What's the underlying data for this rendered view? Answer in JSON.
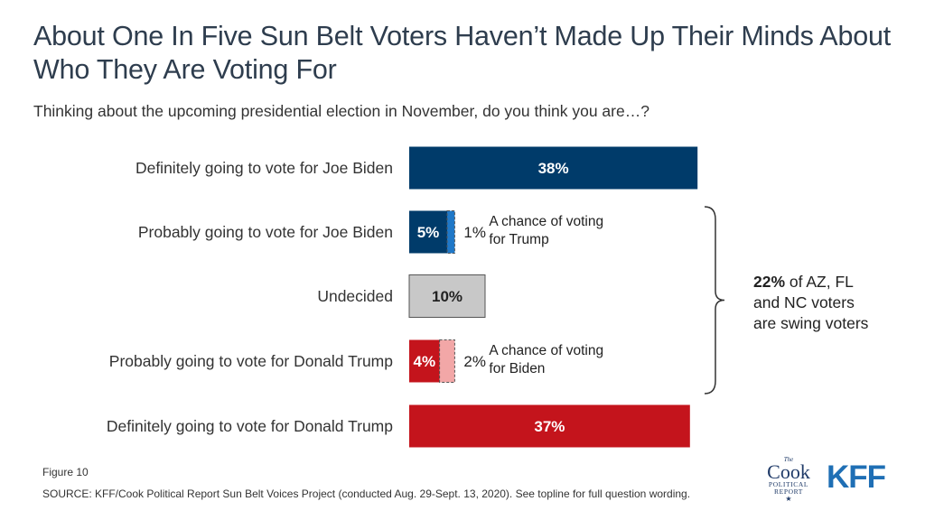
{
  "title": "About One In Five Sun Belt Voters Haven’t Made Up Their Minds About Who They Are Voting For",
  "subtitle": "Thinking about the upcoming presidential election in November, do you think you are…?",
  "figure_label": "Figure 10",
  "source": "SOURCE: KFF/Cook Political Report Sun Belt Voices Project (conducted Aug. 29-Sept. 13, 2020). See topline for full question wording.",
  "logos": {
    "cook_the": "The",
    "cook_main": "Cook",
    "cook_line1": "POLITICAL",
    "cook_line2": "REPORT",
    "cook_star": "★",
    "kff": "KFF"
  },
  "colors": {
    "biden": "#003b6a",
    "biden_lean": "#1f78c8",
    "undecided": "#c8c8c8",
    "trump": "#c4141c",
    "trump_lean": "#f2a7a7"
  },
  "chart_data": {
    "type": "bar",
    "orientation": "horizontal",
    "title": "",
    "xlim": [
      0,
      38
    ],
    "categories": [
      "Definitely going to vote for Joe Biden",
      "Probably going to vote for Joe Biden",
      "Undecided",
      "Probably going to vote for Donald Trump",
      "Definitely going to vote for Donald Trump"
    ],
    "bars": [
      {
        "value": 38,
        "label": "38%",
        "color": "#003b6a",
        "label_color": "#ffffff"
      },
      {
        "value": 5,
        "label": "5%",
        "color": "#003b6a",
        "label_color": "#ffffff",
        "extra": {
          "value": 1,
          "label": "1%",
          "color": "#1f78c8",
          "note": "A chance of voting for Trump",
          "note_lines": [
            "A chance of voting",
            "for Trump"
          ]
        }
      },
      {
        "value": 10,
        "label": "10%",
        "color": "#c8c8c8",
        "label_color": "#222222"
      },
      {
        "value": 4,
        "label": "4%",
        "color": "#c4141c",
        "label_color": "#ffffff",
        "extra": {
          "value": 2,
          "label": "2%",
          "color": "#f2a7a7",
          "note": "A chance of voting for Biden",
          "note_lines": [
            "A chance of voting",
            "for Biden"
          ]
        }
      },
      {
        "value": 37,
        "label": "37%",
        "color": "#c4141c",
        "label_color": "#ffffff"
      }
    ],
    "bracket_annotation": {
      "bold": "22%",
      "rest": " of AZ, FL",
      "line2": "and NC voters",
      "line3": "are swing voters"
    }
  }
}
